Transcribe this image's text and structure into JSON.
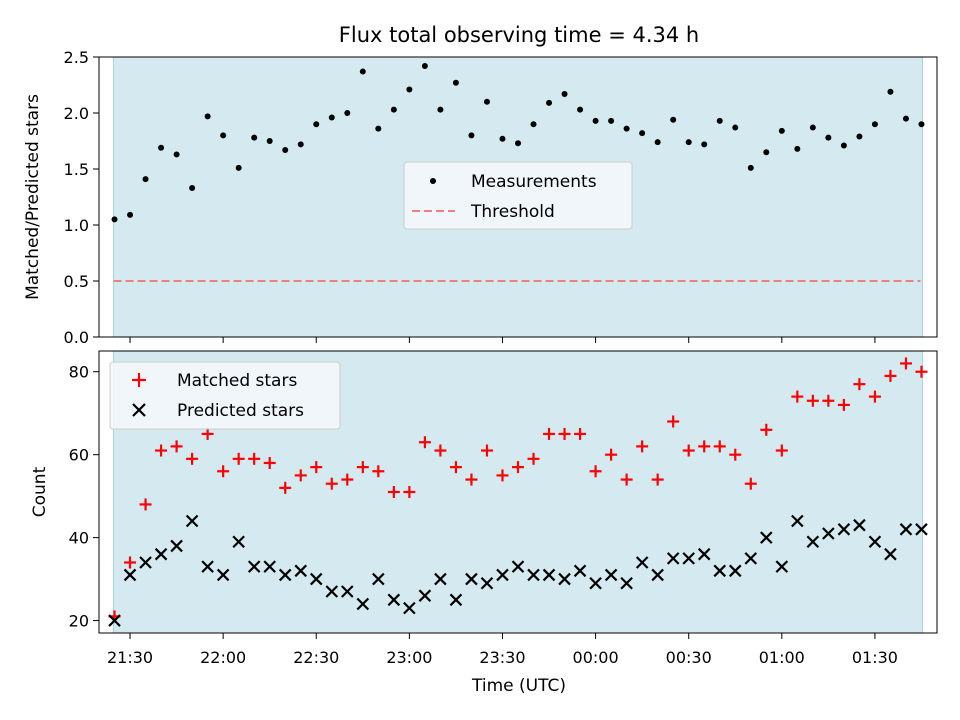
{
  "figure": {
    "title": "Flux total observing time = 4.34 h",
    "shade_color": "#d4eaf0",
    "shade_edge": "#aad4de"
  },
  "chart_data": [
    {
      "type": "scatter",
      "title": "Flux total observing time = 4.34 h",
      "ylabel": "Matched/Predicted stars",
      "xlabel": "",
      "ylim": [
        0,
        2.5
      ],
      "yticks": [
        "0.0",
        "0.5",
        "1.0",
        "1.5",
        "2.0",
        "2.5"
      ],
      "legend_placement": "center",
      "series": [
        {
          "name": "Measurements",
          "kind": "scatter",
          "color": "#000000",
          "marker": "dot",
          "x": [
            "21:25",
            "21:30",
            "21:35",
            "21:40",
            "21:45",
            "21:50",
            "21:55",
            "22:00",
            "22:05",
            "22:10",
            "22:15",
            "22:20",
            "22:25",
            "22:30",
            "22:35",
            "22:40",
            "22:45",
            "22:50",
            "22:55",
            "23:00",
            "23:05",
            "23:10",
            "23:15",
            "23:20",
            "23:25",
            "23:30",
            "23:35",
            "23:40",
            "23:45",
            "23:50",
            "23:55",
            "00:00",
            "00:05",
            "00:10",
            "00:15",
            "00:20",
            "00:25",
            "00:30",
            "00:35",
            "00:40",
            "00:45",
            "00:50",
            "00:55",
            "01:00",
            "01:05",
            "01:10",
            "01:15",
            "01:20",
            "01:25",
            "01:30",
            "01:35",
            "01:40",
            "01:45"
          ],
          "y": [
            1.05,
            1.09,
            1.41,
            1.69,
            1.63,
            1.33,
            1.97,
            1.8,
            1.51,
            1.78,
            1.75,
            1.67,
            1.72,
            1.9,
            1.96,
            2.0,
            2.37,
            1.86,
            2.03,
            2.21,
            2.42,
            2.03,
            2.27,
            1.8,
            2.1,
            1.77,
            1.73,
            1.9,
            2.09,
            2.17,
            2.03,
            1.93,
            1.93,
            1.86,
            1.82,
            1.74,
            1.94,
            1.74,
            1.72,
            1.93,
            1.87,
            1.51,
            1.65,
            1.84,
            1.68,
            1.87,
            1.78,
            1.71,
            1.79,
            1.9,
            2.19,
            1.95,
            1.9
          ]
        },
        {
          "name": "Threshold",
          "kind": "line",
          "color": "#f08080",
          "style": "dashed",
          "y": 0.5
        }
      ]
    },
    {
      "type": "scatter",
      "title": "",
      "ylabel": "Count",
      "xlabel": "Time (UTC)",
      "ylim": [
        17,
        85
      ],
      "yticks": [
        "20",
        "40",
        "60",
        "80"
      ],
      "x_ticks": [
        "21:30",
        "22:00",
        "22:30",
        "23:00",
        "23:30",
        "00:00",
        "00:30",
        "01:00",
        "01:30"
      ],
      "x_range": [
        "21:20",
        "01:50"
      ],
      "legend_placement": "upper left",
      "series": [
        {
          "name": "Matched stars",
          "kind": "scatter",
          "color": "#ff0000",
          "marker": "plus",
          "x": [
            "21:25",
            "21:30",
            "21:35",
            "21:40",
            "21:45",
            "21:50",
            "21:55",
            "22:00",
            "22:05",
            "22:10",
            "22:15",
            "22:20",
            "22:25",
            "22:30",
            "22:35",
            "22:40",
            "22:45",
            "22:50",
            "22:55",
            "23:00",
            "23:05",
            "23:10",
            "23:15",
            "23:20",
            "23:25",
            "23:30",
            "23:35",
            "23:40",
            "23:45",
            "23:50",
            "23:55",
            "00:00",
            "00:05",
            "00:10",
            "00:15",
            "00:20",
            "00:25",
            "00:30",
            "00:35",
            "00:40",
            "00:45",
            "00:50",
            "00:55",
            "01:00",
            "01:05",
            "01:10",
            "01:15",
            "01:20",
            "01:25",
            "01:30",
            "01:35",
            "01:40",
            "01:45"
          ],
          "y": [
            21,
            34,
            48,
            61,
            62,
            59,
            65,
            56,
            59,
            59,
            58,
            52,
            55,
            57,
            53,
            54,
            57,
            56,
            51,
            51,
            63,
            61,
            57,
            54,
            61,
            55,
            57,
            59,
            65,
            65,
            65,
            56,
            60,
            54,
            62,
            54,
            68,
            61,
            62,
            62,
            60,
            53,
            66,
            61,
            74,
            73,
            73,
            72,
            77,
            74,
            79,
            82,
            80
          ]
        },
        {
          "name": "Predicted stars",
          "kind": "scatter",
          "color": "#000000",
          "marker": "x",
          "x": [
            "21:25",
            "21:30",
            "21:35",
            "21:40",
            "21:45",
            "21:50",
            "21:55",
            "22:00",
            "22:05",
            "22:10",
            "22:15",
            "22:20",
            "22:25",
            "22:30",
            "22:35",
            "22:40",
            "22:45",
            "22:50",
            "22:55",
            "23:00",
            "23:05",
            "23:10",
            "23:15",
            "23:20",
            "23:25",
            "23:30",
            "23:35",
            "23:40",
            "23:45",
            "23:50",
            "23:55",
            "00:00",
            "00:05",
            "00:10",
            "00:15",
            "00:20",
            "00:25",
            "00:30",
            "00:35",
            "00:40",
            "00:45",
            "00:50",
            "00:55",
            "01:00",
            "01:05",
            "01:10",
            "01:15",
            "01:20",
            "01:25",
            "01:30",
            "01:35",
            "01:40",
            "01:45"
          ],
          "y": [
            20,
            31,
            34,
            36,
            38,
            44,
            33,
            31,
            39,
            33,
            33,
            31,
            32,
            30,
            27,
            27,
            24,
            30,
            25,
            23,
            26,
            30,
            25,
            30,
            29,
            31,
            33,
            31,
            31,
            30,
            32,
            29,
            31,
            29,
            34,
            31,
            35,
            35,
            36,
            32,
            32,
            35,
            40,
            33,
            44,
            39,
            41,
            42,
            43,
            39,
            36,
            42,
            42
          ]
        }
      ]
    }
  ]
}
